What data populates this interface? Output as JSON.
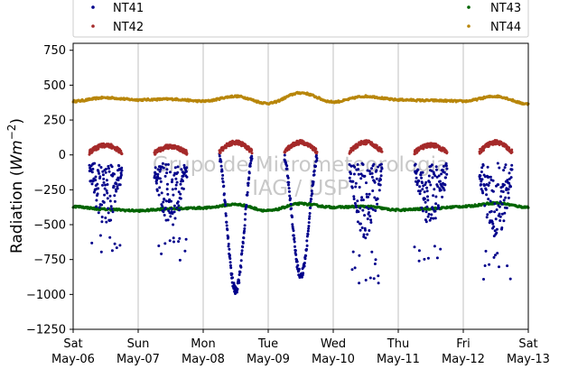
{
  "chart_data": {
    "type": "scatter",
    "title": "",
    "xlabel": "",
    "ylabel": "Radiation (Wm⁻²)",
    "ylabel_parts": {
      "prefix": "Radiation (",
      "unit": "Wm",
      "exp": "−2",
      "suffix": ")"
    },
    "xlim": [
      "2023-05-06 00:00",
      "2023-05-13 00:00"
    ],
    "ylim": [
      -1250,
      800
    ],
    "yticks": [
      750,
      500,
      250,
      0,
      -250,
      -500,
      -750,
      -1000,
      -1250
    ],
    "ytick_labels": [
      "750",
      "500",
      "250",
      "0",
      "−250",
      "−500",
      "−750",
      "−1000",
      "−1250"
    ],
    "xtick_labels": [
      {
        "day": "Sat",
        "date": "May-06"
      },
      {
        "day": "Sun",
        "date": "May-07"
      },
      {
        "day": "Mon",
        "date": "May-08"
      },
      {
        "day": "Tue",
        "date": "May-09"
      },
      {
        "day": "Wed",
        "date": "May-10"
      },
      {
        "day": "Thu",
        "date": "May-11"
      },
      {
        "day": "Fri",
        "date": "May-12"
      },
      {
        "day": "Sat",
        "date": "May-13"
      }
    ],
    "grid": "vertical",
    "legend_placement": "top",
    "watermark": [
      "Grupo de Micrometeorologia",
      "IAG / USP"
    ],
    "series": [
      {
        "name": "NT41",
        "color": "#00008b",
        "description": "daytime only, negative values",
        "daytime_min": [
          -770,
          -770,
          -950,
          -840,
          -920,
          -780,
          -920
        ]
      },
      {
        "name": "NT42",
        "color": "#a52a2a",
        "description": "daytime only, small positive values",
        "daytime_max": [
          70,
          60,
          90,
          90,
          90,
          70,
          90
        ]
      },
      {
        "name": "NT43",
        "color": "#006400",
        "points": [
          [
            "2023-05-06 00:00",
            -370
          ],
          [
            "2023-05-06 12:00",
            -390
          ],
          [
            "2023-05-07 00:00",
            -400
          ],
          [
            "2023-05-07 12:00",
            -385
          ],
          [
            "2023-05-08 00:00",
            -380
          ],
          [
            "2023-05-08 12:00",
            -355
          ],
          [
            "2023-05-09 00:00",
            -400
          ],
          [
            "2023-05-09 12:00",
            -350
          ],
          [
            "2023-05-10 00:00",
            -375
          ],
          [
            "2023-05-10 12:00",
            -370
          ],
          [
            "2023-05-11 00:00",
            -395
          ],
          [
            "2023-05-11 12:00",
            -385
          ],
          [
            "2023-05-12 00:00",
            -370
          ],
          [
            "2023-05-12 12:00",
            -345
          ],
          [
            "2023-05-13 00:00",
            -375
          ]
        ]
      },
      {
        "name": "NT44",
        "color": "#b8860b",
        "points": [
          [
            "2023-05-06 00:00",
            385
          ],
          [
            "2023-05-06 12:00",
            410
          ],
          [
            "2023-05-07 00:00",
            395
          ],
          [
            "2023-05-07 12:00",
            400
          ],
          [
            "2023-05-08 00:00",
            385
          ],
          [
            "2023-05-08 12:00",
            420
          ],
          [
            "2023-05-09 00:00",
            370
          ],
          [
            "2023-05-09 12:00",
            445
          ],
          [
            "2023-05-10 00:00",
            380
          ],
          [
            "2023-05-10 12:00",
            420
          ],
          [
            "2023-05-11 00:00",
            395
          ],
          [
            "2023-05-11 12:00",
            390
          ],
          [
            "2023-05-12 00:00",
            385
          ],
          [
            "2023-05-12 12:00",
            420
          ],
          [
            "2023-05-13 00:00",
            365
          ]
        ]
      }
    ]
  }
}
